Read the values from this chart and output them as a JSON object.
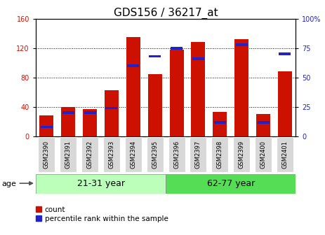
{
  "title": "GDS156 / 36217_at",
  "samples": [
    "GSM2390",
    "GSM2391",
    "GSM2392",
    "GSM2393",
    "GSM2394",
    "GSM2395",
    "GSM2396",
    "GSM2397",
    "GSM2398",
    "GSM2399",
    "GSM2400",
    "GSM2401"
  ],
  "counts": [
    28,
    40,
    37,
    63,
    135,
    85,
    118,
    128,
    33,
    132,
    30,
    88
  ],
  "percentiles": [
    8,
    20,
    20,
    24,
    60,
    68,
    75,
    66,
    12,
    78,
    12,
    70
  ],
  "groups": [
    {
      "label": "21-31 year",
      "start": 0,
      "end": 6
    },
    {
      "label": "62-77 year",
      "start": 6,
      "end": 12
    }
  ],
  "group_color_light": "#bbffbb",
  "group_color_dark": "#55dd55",
  "bar_color_red": "#cc1100",
  "bar_color_blue": "#2222cc",
  "ylim_left": [
    0,
    160
  ],
  "ylim_right": [
    0,
    100
  ],
  "yticks_left": [
    0,
    40,
    80,
    120,
    160
  ],
  "yticks_right": [
    0,
    25,
    50,
    75,
    100
  ],
  "ytick_labels_right": [
    "0",
    "25",
    "50",
    "75",
    "100%"
  ],
  "ylabel_left_color": "#cc1100",
  "ylabel_right_color": "#2222cc",
  "legend_count": "count",
  "legend_percentile": "percentile rank within the sample",
  "age_label": "age",
  "background_color": "#ffffff",
  "bar_width": 0.65,
  "title_fontsize": 11,
  "tick_fontsize": 7,
  "group_label_fontsize": 9,
  "legend_fontsize": 7.5
}
